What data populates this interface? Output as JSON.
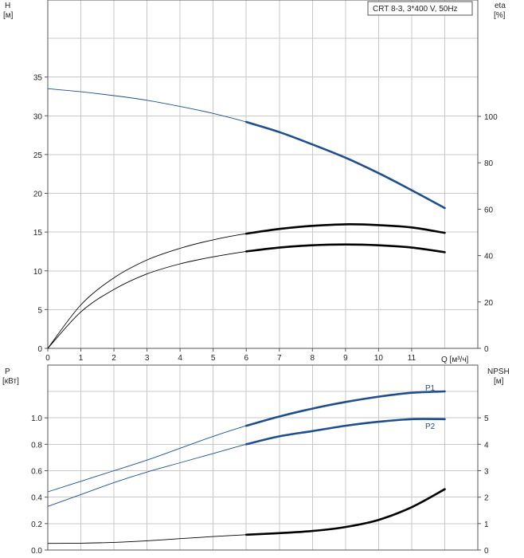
{
  "chart_data": [
    {
      "type": "line",
      "panel": "upper",
      "legend": "CRT 8-3, 3*400 V, 50Hz",
      "legend_placement": "top-right",
      "grid": true,
      "x_label": "Q [м³/ч]",
      "x_ticks": [
        0,
        1,
        2,
        3,
        4,
        5,
        6,
        7,
        8,
        9,
        10,
        11
      ],
      "xlim": [
        0,
        13
      ],
      "y_left": {
        "label_line1": "H",
        "label_line2": "[м]",
        "ticks": [
          0,
          5,
          10,
          15,
          20,
          25,
          30,
          35
        ],
        "range": [
          0,
          40
        ]
      },
      "y_right": {
        "label_line1": "eta",
        "label_line2": "[%]",
        "ticks": [
          0,
          20,
          40,
          60,
          80,
          100
        ],
        "range": [
          0,
          100
        ]
      },
      "series": [
        {
          "axis": "left",
          "color": "#1f4e8c",
          "duty_from": 6,
          "x": [
            0,
            1,
            2,
            3,
            4,
            5,
            6,
            7,
            8,
            9,
            10,
            11,
            12
          ],
          "y": [
            33.5,
            33.1,
            32.6,
            32.0,
            31.2,
            30.3,
            29.2,
            27.9,
            26.3,
            24.6,
            22.6,
            20.4,
            18.1
          ]
        },
        {
          "axis": "left",
          "color": "#000000",
          "duty_from": 6,
          "x": [
            0,
            1,
            2,
            3,
            4,
            5,
            6,
            7,
            8,
            9,
            10,
            11,
            12
          ],
          "y": [
            0,
            5.6,
            9.1,
            11.4,
            12.9,
            14.0,
            14.8,
            15.4,
            15.8,
            16.0,
            15.9,
            15.6,
            14.9
          ]
        },
        {
          "axis": "left",
          "color": "#000000",
          "duty_from": 6,
          "x": [
            0,
            1,
            2,
            3,
            4,
            5,
            6,
            7,
            8,
            9,
            10,
            11,
            12
          ],
          "y": [
            0,
            4.7,
            7.6,
            9.6,
            10.9,
            11.8,
            12.5,
            13.0,
            13.3,
            13.4,
            13.3,
            13.0,
            12.4
          ]
        }
      ]
    },
    {
      "type": "line",
      "panel": "lower",
      "grid": true,
      "xlim": [
        0,
        13
      ],
      "y_left": {
        "label_line1": "P",
        "label_line2": "[кВт]",
        "ticks": [
          "0.0",
          "0.2",
          "0.4",
          "0.6",
          "0.8",
          "1.0"
        ],
        "range": [
          0,
          1.2
        ]
      },
      "y_right": {
        "label_line1": "NPSH",
        "label_line2": "[м]",
        "ticks": [
          0,
          1,
          2,
          3,
          4,
          5
        ],
        "range": [
          0,
          6
        ]
      },
      "series": [
        {
          "name": "P1",
          "axis": "left",
          "color": "#1f4e8c",
          "duty_from": 6,
          "x": [
            0,
            1,
            2,
            3,
            4,
            5,
            6,
            7,
            8,
            9,
            10,
            11,
            12
          ],
          "y": [
            0.44,
            0.52,
            0.6,
            0.68,
            0.77,
            0.86,
            0.94,
            1.01,
            1.07,
            1.12,
            1.16,
            1.19,
            1.2
          ]
        },
        {
          "name": "P2",
          "axis": "left",
          "color": "#1f4e8c",
          "duty_from": 6,
          "x": [
            0,
            1,
            2,
            3,
            4,
            5,
            6,
            7,
            8,
            9,
            10,
            11,
            12
          ],
          "y": [
            0.33,
            0.42,
            0.51,
            0.59,
            0.66,
            0.73,
            0.8,
            0.86,
            0.9,
            0.94,
            0.97,
            0.99,
            0.99
          ]
        },
        {
          "axis": "right",
          "color": "#000000",
          "duty_from": 6,
          "x": [
            0,
            1,
            2,
            3,
            4,
            5,
            6,
            7,
            8,
            9,
            10,
            11,
            12
          ],
          "y": [
            0.25,
            0.26,
            0.29,
            0.35,
            0.43,
            0.51,
            0.58,
            0.64,
            0.72,
            0.87,
            1.14,
            1.62,
            2.3
          ]
        }
      ]
    }
  ]
}
